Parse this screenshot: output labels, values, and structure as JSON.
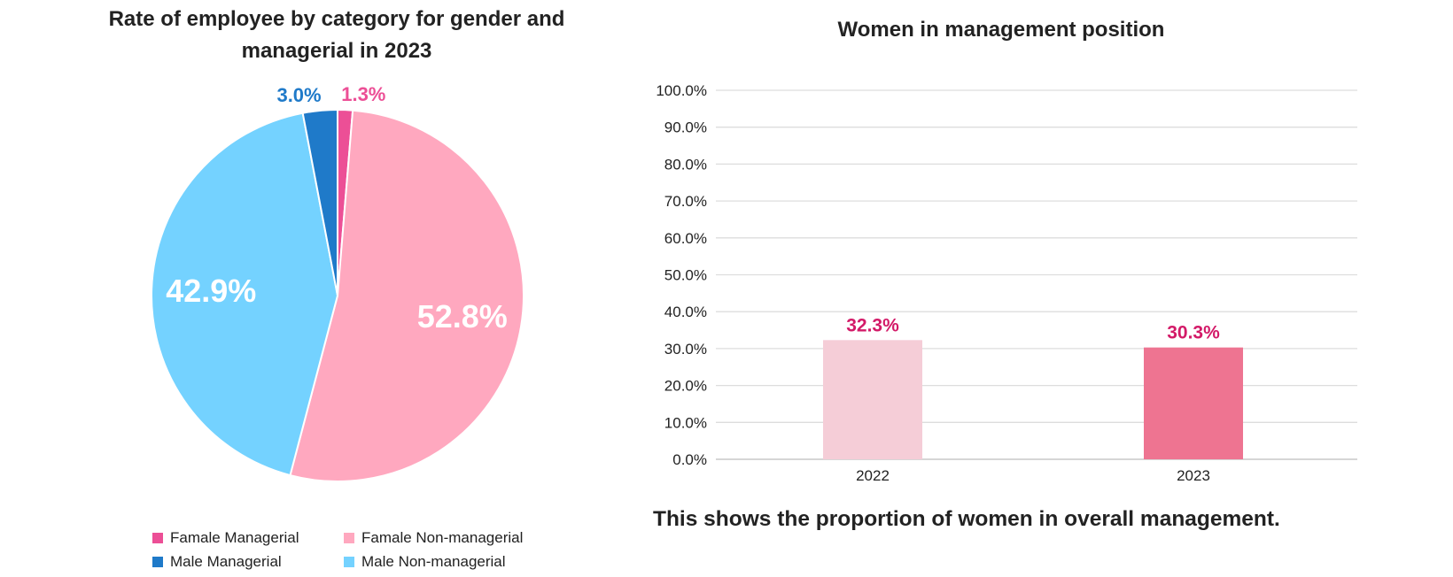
{
  "chart_data": [
    {
      "type": "pie",
      "title": "Rate of employee by category for gender and managerial in 2023",
      "slices": [
        {
          "name": "Famale Managerial",
          "value": 1.3,
          "label": "1.3%",
          "color": "#ec4f96"
        },
        {
          "name": "Famale Non-managerial",
          "value": 52.8,
          "label": "52.8%",
          "color": "#ffa8bf"
        },
        {
          "name": "Male Non-managerial",
          "value": 42.9,
          "label": "42.9%",
          "color": "#74d2ff"
        },
        {
          "name": "Male Managerial",
          "value": 3.0,
          "label": "3.0%",
          "color": "#1f7ac9"
        }
      ],
      "legend": [
        {
          "name": "Famale Managerial",
          "color": "#ec4f96"
        },
        {
          "name": "Famale Non-managerial",
          "color": "#ffa8bf"
        },
        {
          "name": "Male Managerial",
          "color": "#1f7ac9"
        },
        {
          "name": "Male Non-managerial",
          "color": "#74d2ff"
        }
      ],
      "legend_position": "bottom"
    },
    {
      "type": "bar",
      "title": "Women in management position",
      "categories": [
        "2022",
        "2023"
      ],
      "values": [
        32.3,
        30.3
      ],
      "value_labels": [
        "32.3%",
        "30.3%"
      ],
      "bar_colors": [
        "#f5cdd7",
        "#ee7491"
      ],
      "label_color": "#d31a68",
      "ylim": [
        0,
        100
      ],
      "yticks": [
        "0.0%",
        "10.0%",
        "20.0%",
        "30.0%",
        "40.0%",
        "50.0%",
        "60.0%",
        "70.0%",
        "80.0%",
        "90.0%",
        "100.0%"
      ],
      "grid": true,
      "caption": "This shows the proportion of women in overall management."
    }
  ]
}
